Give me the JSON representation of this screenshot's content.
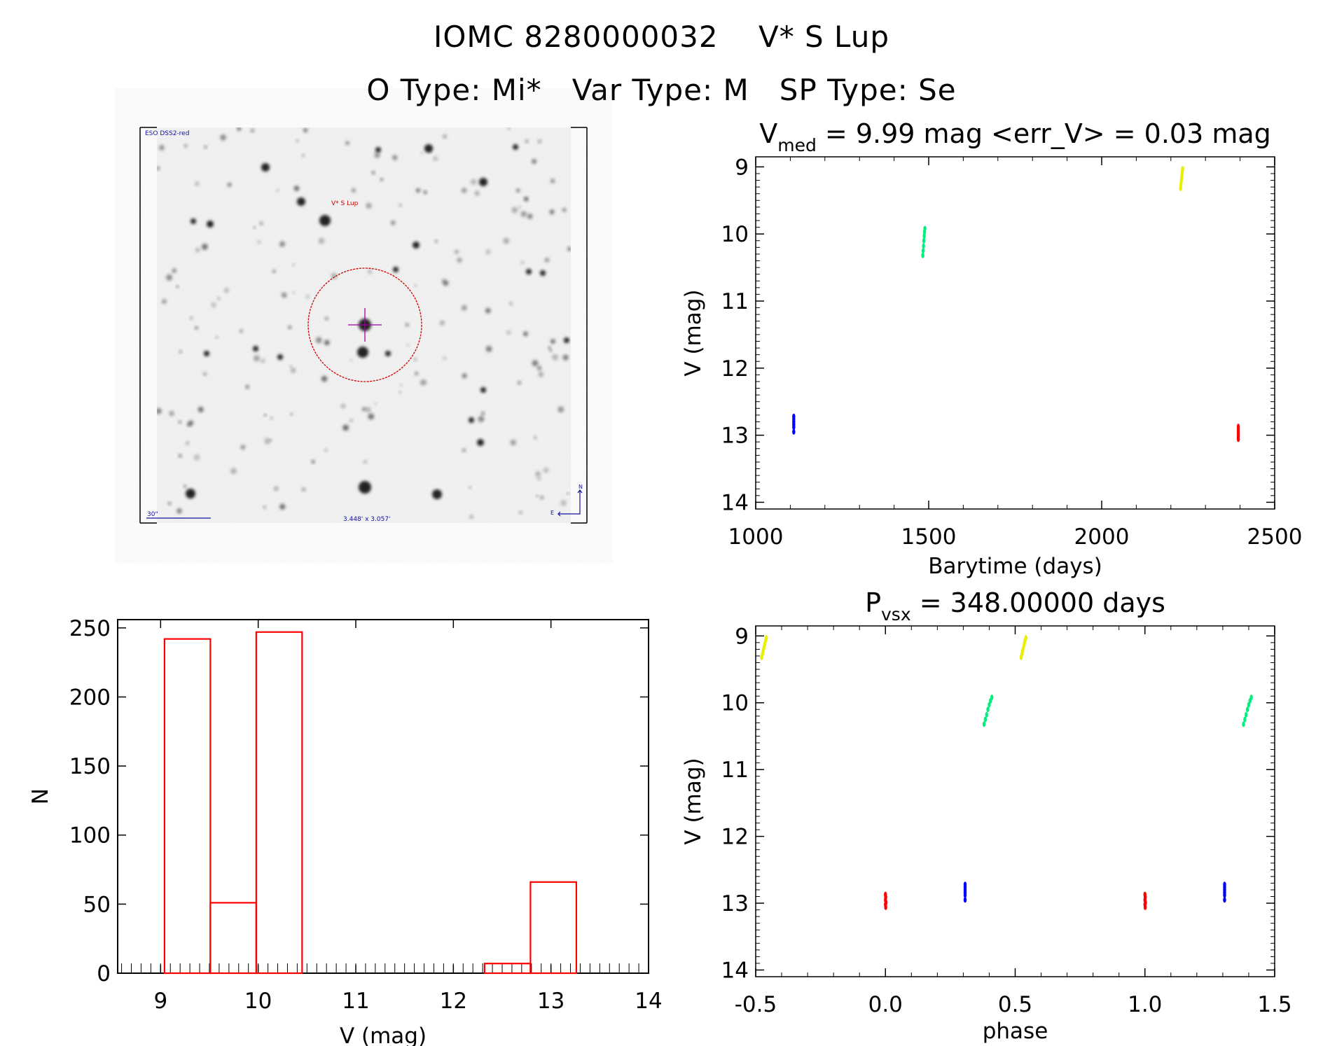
{
  "header": {
    "title": "IOMC 8280000032    V* S Lup",
    "subtitle": "O Type: Mi*   Var Type: M   SP Type: Se"
  },
  "sky_image": {
    "survey_label": "ESO DSS2-red",
    "target_label": "V* S Lup",
    "scale_label": "30\"",
    "fov_label": "3.448' x 3.057'",
    "north_label": "N",
    "east_label": "E",
    "colors": {
      "survey": "#1010a0",
      "target": "#cc0000",
      "marker": "#a000a0"
    }
  },
  "chart_data": [
    {
      "type": "scatter",
      "id": "lightcurve",
      "title_main": "V",
      "title_sub": "med",
      "title_rest": " = 9.99 mag <err_V> = 0.03 mag",
      "xlabel": "Barytime (days)",
      "ylabel": "V (mag)",
      "xlim": [
        1000,
        2500
      ],
      "ylim": [
        14.1,
        8.85
      ],
      "y_inverted": true,
      "xticks": [
        1000,
        1500,
        2000,
        2500
      ],
      "yticks": [
        9,
        10,
        11,
        12,
        13,
        14
      ],
      "grid": false,
      "series": [
        {
          "color": "#0000ff",
          "x": [
            1110,
            1110,
            1110,
            1110,
            1110,
            1110
          ],
          "y": [
            12.72,
            12.76,
            12.8,
            12.84,
            12.88,
            12.95
          ]
        },
        {
          "color": "#00f080",
          "x": [
            1483,
            1484,
            1485,
            1486,
            1487,
            1488,
            1489
          ],
          "y": [
            10.32,
            10.25,
            10.18,
            10.1,
            10.03,
            9.97,
            9.92
          ]
        },
        {
          "color": "#e6f000",
          "x": [
            2228,
            2229,
            2230,
            2231,
            2232,
            2233,
            2234
          ],
          "y": [
            9.32,
            9.27,
            9.22,
            9.17,
            9.12,
            9.07,
            9.03
          ]
        },
        {
          "color": "#ff0000",
          "x": [
            2395,
            2395,
            2395,
            2395,
            2395,
            2395
          ],
          "y": [
            12.87,
            12.91,
            12.95,
            12.99,
            13.02,
            13.06
          ]
        }
      ]
    },
    {
      "type": "bar",
      "id": "histogram",
      "title": "",
      "xlabel": "V (mag)",
      "ylabel": "N",
      "xlim": [
        8.56,
        14
      ],
      "ylim": [
        0,
        256
      ],
      "xticks": [
        9,
        10,
        11,
        12,
        13,
        14
      ],
      "yticks": [
        0,
        50,
        100,
        150,
        200,
        250
      ],
      "grid": false,
      "bin_edges": [
        9.04,
        9.51,
        9.98,
        10.45,
        10.92,
        11.38,
        11.85,
        12.32,
        12.79,
        13.26
      ],
      "values": [
        242,
        51,
        247,
        0,
        0,
        0,
        0,
        7,
        66
      ],
      "color": "#ff0000"
    },
    {
      "type": "scatter",
      "id": "phased",
      "title_main": "P",
      "title_sub": "vsx",
      "title_rest": " = 348.00000 days",
      "xlabel": "phase",
      "ylabel": "V (mag)",
      "xlim": [
        -0.5,
        1.5
      ],
      "ylim": [
        14.1,
        8.85
      ],
      "y_inverted": true,
      "xticks": [
        "-0.5",
        "0.0",
        "0.5",
        "1.0",
        "1.5"
      ],
      "yticks": [
        9,
        10,
        11,
        12,
        13,
        14
      ],
      "grid": false,
      "series": [
        {
          "color": "#0000ff",
          "x": [
            0.307,
            0.307,
            0.307,
            0.307,
            0.307,
            0.307,
            1.307,
            1.307,
            1.307,
            1.307,
            1.307,
            1.307
          ],
          "y": [
            12.72,
            12.76,
            12.8,
            12.84,
            12.88,
            12.95,
            12.72,
            12.76,
            12.8,
            12.84,
            12.88,
            12.95
          ]
        },
        {
          "color": "#00f080",
          "x": [
            0.38,
            0.385,
            0.39,
            0.395,
            0.4,
            0.405,
            0.41,
            1.38,
            1.385,
            1.39,
            1.395,
            1.4,
            1.405,
            1.41
          ],
          "y": [
            10.32,
            10.25,
            10.18,
            10.1,
            10.03,
            9.97,
            9.92,
            10.32,
            10.25,
            10.18,
            10.1,
            10.03,
            9.97,
            9.92
          ]
        },
        {
          "color": "#e6f000",
          "x": [
            -0.477,
            -0.474,
            -0.471,
            -0.468,
            -0.465,
            -0.462,
            -0.459,
            0.523,
            0.526,
            0.529,
            0.532,
            0.535,
            0.538,
            0.541
          ],
          "y": [
            9.32,
            9.27,
            9.22,
            9.17,
            9.12,
            9.07,
            9.03,
            9.32,
            9.27,
            9.22,
            9.17,
            9.12,
            9.07,
            9.03
          ]
        },
        {
          "color": "#ff0000",
          "x": [
            0.0,
            0.001,
            0.0,
            0.002,
            0.0,
            0.001,
            1.0,
            1.001,
            1.0,
            1.002,
            1.0,
            1.001
          ],
          "y": [
            12.87,
            12.91,
            12.95,
            12.99,
            13.02,
            13.06,
            12.87,
            12.91,
            12.95,
            12.99,
            13.02,
            13.06
          ]
        }
      ]
    }
  ]
}
